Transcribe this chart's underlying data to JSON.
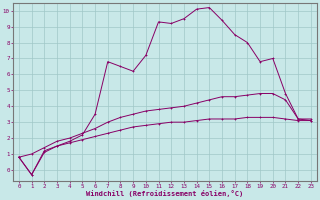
{
  "title": "",
  "xlabel": "Windchill (Refroidissement éolien,°C)",
  "ylabel": "",
  "background_color": "#c8e8e8",
  "line_color": "#880066",
  "grid_color": "#a0c8c8",
  "xlim": [
    -0.5,
    23.5
  ],
  "ylim": [
    -0.7,
    10.5
  ],
  "xticks": [
    0,
    1,
    2,
    3,
    4,
    5,
    6,
    7,
    8,
    9,
    10,
    11,
    12,
    13,
    14,
    15,
    16,
    17,
    18,
    19,
    20,
    21,
    22,
    23
  ],
  "yticks": [
    0,
    1,
    2,
    3,
    4,
    5,
    6,
    7,
    8,
    9,
    10
  ],
  "line1_x": [
    0,
    1,
    2,
    3,
    4,
    5,
    6,
    7,
    8,
    9,
    10,
    11,
    12,
    13,
    14,
    15,
    16,
    17,
    18,
    19,
    20,
    21,
    22,
    23
  ],
  "line1_y": [
    0.8,
    -0.3,
    1.1,
    1.5,
    1.7,
    1.9,
    2.1,
    2.3,
    2.5,
    2.7,
    2.8,
    2.9,
    3.0,
    3.0,
    3.1,
    3.2,
    3.2,
    3.2,
    3.3,
    3.3,
    3.3,
    3.2,
    3.1,
    3.1
  ],
  "line2_x": [
    0,
    1,
    2,
    3,
    4,
    5,
    6,
    7,
    8,
    9,
    10,
    11,
    12,
    13,
    14,
    15,
    16,
    17,
    18,
    19,
    20,
    21,
    22,
    23
  ],
  "line2_y": [
    0.8,
    1.0,
    1.4,
    1.8,
    2.0,
    2.3,
    2.6,
    3.0,
    3.3,
    3.5,
    3.7,
    3.8,
    3.9,
    4.0,
    4.2,
    4.4,
    4.6,
    4.6,
    4.7,
    4.8,
    4.8,
    4.4,
    3.2,
    3.1
  ],
  "line3_x": [
    0,
    1,
    2,
    3,
    4,
    5,
    6,
    7,
    8,
    9,
    10,
    11,
    12,
    13,
    14,
    15,
    16,
    17,
    18,
    19,
    20,
    21,
    22,
    23
  ],
  "line3_y": [
    0.8,
    -0.3,
    1.2,
    1.5,
    1.8,
    2.2,
    3.5,
    6.8,
    6.5,
    6.2,
    7.2,
    9.3,
    9.2,
    9.5,
    10.1,
    10.2,
    9.4,
    8.5,
    8.0,
    6.8,
    7.0,
    4.8,
    3.2,
    3.2
  ]
}
